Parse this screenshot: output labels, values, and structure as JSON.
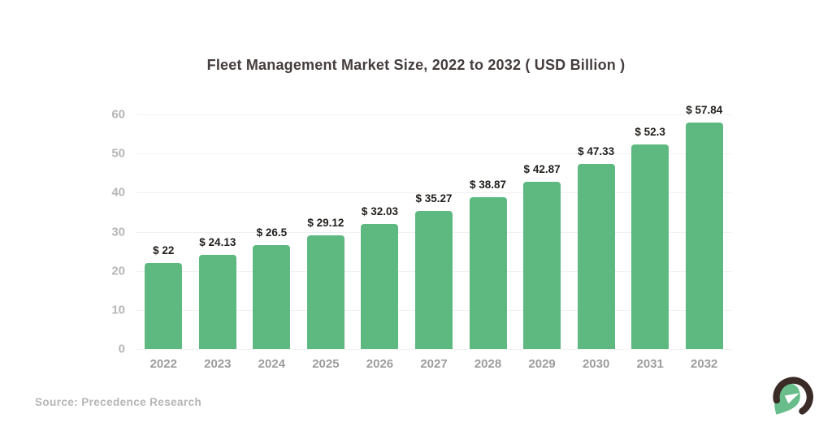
{
  "title": "Fleet Management Market Size, 2022 to 2032 ( USD Billion )",
  "source": "Source: Precedence Research",
  "logo": {
    "name": "precedence-research-logo",
    "crest_color": "#3a2b27",
    "helmet_color": "#68bd8b"
  },
  "chart_data": {
    "type": "bar",
    "title": "Fleet Management Market Size, 2022 to 2032 ( USD Billion )",
    "categories": [
      "2022",
      "2023",
      "2024",
      "2025",
      "2026",
      "2027",
      "2028",
      "2029",
      "2030",
      "2031",
      "2032"
    ],
    "values": [
      22,
      24.13,
      26.5,
      29.12,
      32.03,
      35.27,
      38.87,
      42.87,
      47.33,
      52.3,
      57.84
    ],
    "value_labels": [
      "$ 22",
      "$ 24.13",
      "$ 26.5",
      "$ 29.12",
      "$ 32.03",
      "$ 35.27",
      "$ 38.87",
      "$ 42.87",
      "$ 47.33",
      "$ 52.3",
      "$ 57.84"
    ],
    "xlabel": "",
    "ylabel": "",
    "ylim": [
      0,
      60
    ],
    "yticks": [
      0,
      10,
      20,
      30,
      40,
      50,
      60
    ],
    "grid": true,
    "legend": false,
    "bar_color": "#5eb981",
    "colors": {
      "title": "#463d3d",
      "value_label": "#221f1c",
      "y_tick": "#b6b6b6",
      "x_tick": "#9c9c9c",
      "gridline": "#f1f1f1",
      "source": "#b5b5b5"
    }
  }
}
